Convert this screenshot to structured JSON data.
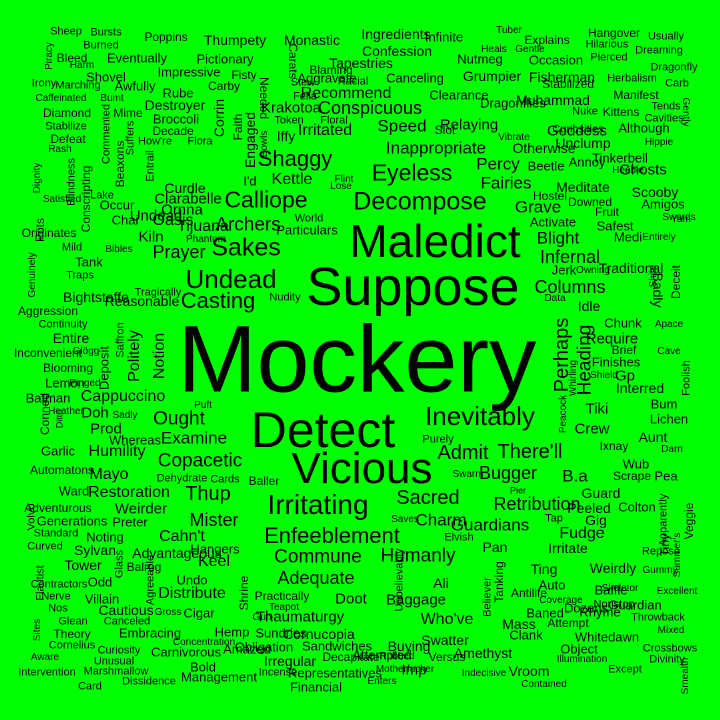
{
  "background": "#00ff00",
  "text_color": "#000000",
  "words": [
    "Mockery",
    "Suppose",
    "Maledict",
    "Detect",
    "Vicious",
    "Inevitably",
    "Undead",
    "Sakes",
    "Calliope",
    "Decompose",
    "Irritating",
    "Casting",
    "Shaggy",
    "Eyeless",
    "Archers",
    "Copacetic",
    "Sacred",
    "Admit",
    "There'll",
    "Bugger",
    "Enfeeblement",
    "Commune",
    "Humanly",
    "Ought",
    "Thup",
    "Mister",
    "Infernal",
    "Columns",
    "Perhaps",
    "Heading",
    "Cappuccino",
    "Politely",
    "Notion",
    "Undead",
    "Prayer",
    "Ornna",
    "Krakotoa",
    "Conspicuous",
    "Inappropriate",
    "Speed",
    "Relaying",
    "Percy",
    "Fairies",
    "Grave",
    "Blight",
    "Kettle",
    "Tijuana",
    "Clarabelle",
    "Irritated",
    "Recommend",
    "Tapestries",
    "Confession",
    "Ingredients",
    "Monastic",
    "Thumpety",
    "Pictionary",
    "Poppins",
    "Bursts",
    "Sheep",
    "Infinite",
    "Explains",
    "Hangover",
    "Usually",
    "Tuber",
    "Heals",
    "Gentle",
    "Hilarious",
    "Dreaming",
    "Burned",
    "Piracy",
    "Bleed",
    "Eventually",
    "Fisty",
    "Carats",
    "Aggravate",
    "Stew",
    "Racial",
    "Grumpier",
    "Fisherman",
    "Pierced",
    "Dragonfly",
    "Harm",
    "Shovel",
    "Impressive",
    "Carby",
    "Needed",
    "Blaming",
    "Fella",
    "Canceling",
    "Occasion",
    "Nutmeg",
    "Herbalism",
    "Carb",
    "Irony",
    "Marching",
    "Awfully",
    "Rube",
    "Destroyer",
    "Clearance",
    "Muhammad",
    "Stabilized",
    "Manifest",
    "Caffeinated",
    "Bumt",
    "Mime",
    "Broccoli",
    "Corrin",
    "Token",
    "Floral",
    "Dragonflies",
    "Nuke",
    "Kittens",
    "Tends",
    "Diamond",
    "Decade",
    "Faith",
    "Slot",
    "Curiosities",
    "Goddess",
    "Although",
    "Cavities",
    "Stabilize",
    "Commented",
    "How're",
    "Flora",
    "Engaged",
    "Iffy",
    "Vibrate",
    "Unclump",
    "Hippie",
    "Gently",
    "Defeat",
    "Suffers",
    "Rash",
    "Beaxons",
    "Entrail",
    "Bowls",
    "Otherwise",
    "Tinkerbell",
    "Beetle",
    "Annoy",
    "Heebie",
    "Ghosts",
    "Dignity",
    "Lake",
    "Blindness",
    "Curdle",
    "I'd",
    "Flint",
    "Lose",
    "Meditate",
    "Scooby",
    "Satisfied",
    "Occur",
    "Conscripting",
    "Hostel",
    "Downed",
    "Amigos",
    "Swords",
    "Chai",
    "Oasis",
    "World",
    "Activate",
    "Fruit",
    "Yam",
    "Originates",
    "Pots",
    "Particulars",
    "Kiln",
    "Phantom",
    "Safest",
    "Medi",
    "Entirely",
    "Mild",
    "Bibles",
    "Tank",
    "Genuinely",
    "Traditional",
    "Shite",
    "Traps",
    "Owning",
    "Deceit",
    "Tragically",
    "Jerk",
    "Data",
    "Badly",
    "Bightstaffe",
    "Reasonable",
    "Nudity",
    "Idle",
    "Aggression",
    "Continuity",
    "Chunk",
    "Apace",
    "Entire",
    "Saffron",
    "Require",
    "Inconvenient",
    "Glögg",
    "Brief",
    "Cave",
    "Deposit",
    "Blooming",
    "Whirling",
    "Finishes",
    "Shield",
    "Gp",
    "Foolish",
    "Lemon",
    "Pinged",
    "Interred",
    "Batman",
    "Puft",
    "Bum",
    "Heather",
    "Doh",
    "Sadly",
    "Tiki",
    "Lichen",
    "Conned",
    "Ditto",
    "Prod",
    "Peacock",
    "Crew",
    "Ixnay",
    "Aunt",
    "Whereas",
    "Examine",
    "Darn",
    "Garlic",
    "Humility",
    "Purely",
    "Wub",
    "Automatons",
    "Mayo",
    "Swarm",
    "B.a",
    "Scrape",
    "Pea",
    "Ward",
    "Dehydrate",
    "Cards",
    "Baller",
    "Pier",
    "Guard",
    "Restoration",
    "Veggie",
    "Adventurous",
    "Weirder",
    "Retribution",
    "Peeled",
    "Colton",
    "Volvo",
    "Generations",
    "Preter",
    "Saves",
    "Charm",
    "Tap",
    "Gig",
    "Standard",
    "Noting",
    "Cahn't",
    "Guardians",
    "Fudge",
    "Apparently",
    "Curved",
    "Sylvan",
    "Hangers",
    "Elvish",
    "Tiny",
    "Summer's",
    "Advantageous",
    "Pan",
    "Irritate",
    "Repose",
    "Glass",
    "Balrog",
    "Keel",
    "Ting",
    "Weirdly",
    "Gummy",
    "Flautist",
    "Tower",
    "Agreeable",
    "Undo",
    "Shrine",
    "Adequate",
    "Unbelievably",
    "Ali",
    "Believer",
    "Auto",
    "Skeletor",
    "Contractors",
    "Odd",
    "Tanking",
    "Antilife",
    "Baffle",
    "Excellent",
    "Nerve",
    "Villain",
    "Distribute",
    "Practically",
    "Doot",
    "Baggage",
    "Coverage",
    "Nos",
    "Cautious",
    "Teapot",
    "Dozens",
    "Nonstop",
    "Guardian",
    "Sites",
    "Glean",
    "Canceled",
    "Gross",
    "Cigar",
    "Gun",
    "Thaumaturgy",
    "Who've",
    "Baned",
    "Rhyme",
    "Throwback",
    "Theory",
    "Embracing",
    "Hemp",
    "Sundries",
    "Cornucopia",
    "Mass",
    "Attempt",
    "Mixed",
    "Cornelius",
    "Curiosity",
    "Carnivorous",
    "Obligation",
    "Sandwiches",
    "Clank",
    "Whitedawn",
    "Aware",
    "Unusual",
    "Concentration",
    "Amazed",
    "Swatter",
    "Crossbows",
    "Intervention",
    "Marshmallow",
    "Bold",
    "Irregular",
    "Motherfucker",
    "Amethyst",
    "Object",
    "Divinity",
    "Decapitate",
    "Buying",
    "Smealth",
    "Incense",
    "Representatives",
    "Robbed",
    "Attempted",
    "Illumination",
    "Card",
    "Dissidence",
    "Management",
    "Financial",
    "Versus",
    "Imp",
    "Vroom",
    "Except",
    "Enters",
    "Indecisive",
    "Contained"
  ]
}
